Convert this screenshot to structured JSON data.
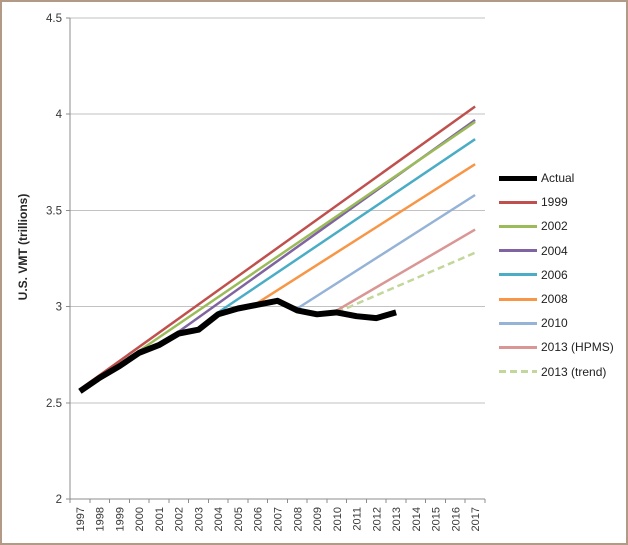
{
  "chart_data": {
    "type": "line",
    "title": "",
    "xlabel": "",
    "ylabel": "U.S. VMT (trillions)",
    "ylim": [
      2,
      4.5
    ],
    "ytick_interval": 0.5,
    "y_tick_labels": [
      "2",
      "2.5",
      "3",
      "3.5",
      "4",
      "4.5"
    ],
    "x_tick_labels": [
      "1997",
      "1998",
      "1999",
      "2000",
      "2001",
      "2002",
      "2003",
      "2004",
      "2005",
      "2006",
      "2007",
      "2008",
      "2009",
      "2010",
      "2011",
      "2012",
      "2013",
      "2014",
      "2015",
      "2016",
      "2017"
    ],
    "grid": true,
    "legend_position": "right",
    "colors": {
      "gridline": "#c2c2c2",
      "axis": "#8c8c8c",
      "tick_text": "#383838",
      "frame_border": "#b29a87"
    },
    "series": [
      {
        "name": "Actual",
        "color": "#000000",
        "width": 6,
        "dash": "solid",
        "points": [
          [
            1997,
            2.56
          ],
          [
            1998,
            2.63
          ],
          [
            1999,
            2.69
          ],
          [
            2000,
            2.76
          ],
          [
            2001,
            2.8
          ],
          [
            2002,
            2.86
          ],
          [
            2003,
            2.88
          ],
          [
            2004,
            2.96
          ],
          [
            2005,
            2.99
          ],
          [
            2006,
            3.01
          ],
          [
            2007,
            3.03
          ],
          [
            2008,
            2.98
          ],
          [
            2009,
            2.96
          ],
          [
            2010,
            2.97
          ],
          [
            2011,
            2.95
          ],
          [
            2012,
            2.94
          ],
          [
            2013,
            2.97
          ]
        ]
      },
      {
        "name": "1999",
        "color": "#C0504D",
        "width": 2.5,
        "dash": "solid",
        "points": [
          [
            1997,
            2.57
          ],
          [
            2017,
            4.04
          ]
        ]
      },
      {
        "name": "2002",
        "color": "#9BBB59",
        "width": 2.5,
        "dash": "solid",
        "points": [
          [
            2000,
            2.77
          ],
          [
            2017,
            3.96
          ]
        ]
      },
      {
        "name": "2004",
        "color": "#8064A2",
        "width": 2.5,
        "dash": "solid",
        "points": [
          [
            2002,
            2.87
          ],
          [
            2017,
            3.97
          ]
        ]
      },
      {
        "name": "2006",
        "color": "#4BACC6",
        "width": 2.5,
        "dash": "solid",
        "points": [
          [
            2004,
            2.97
          ],
          [
            2017,
            3.87
          ]
        ]
      },
      {
        "name": "2008",
        "color": "#F79646",
        "width": 2.5,
        "dash": "solid",
        "points": [
          [
            2006,
            3.02
          ],
          [
            2017,
            3.74
          ]
        ]
      },
      {
        "name": "2010",
        "color": "#95B3D7",
        "width": 2.5,
        "dash": "solid",
        "points": [
          [
            2008,
            2.99
          ],
          [
            2017,
            3.58
          ]
        ]
      },
      {
        "name": "2013 (HPMS)",
        "color": "#D99694",
        "width": 2.5,
        "dash": "solid",
        "points": [
          [
            2010,
            2.98
          ],
          [
            2017,
            3.4
          ]
        ]
      },
      {
        "name": "2013 (trend)",
        "color": "#C3D69B",
        "width": 2.5,
        "dash": "dashed",
        "points": [
          [
            2010,
            2.97
          ],
          [
            2017,
            3.28
          ]
        ]
      }
    ]
  }
}
